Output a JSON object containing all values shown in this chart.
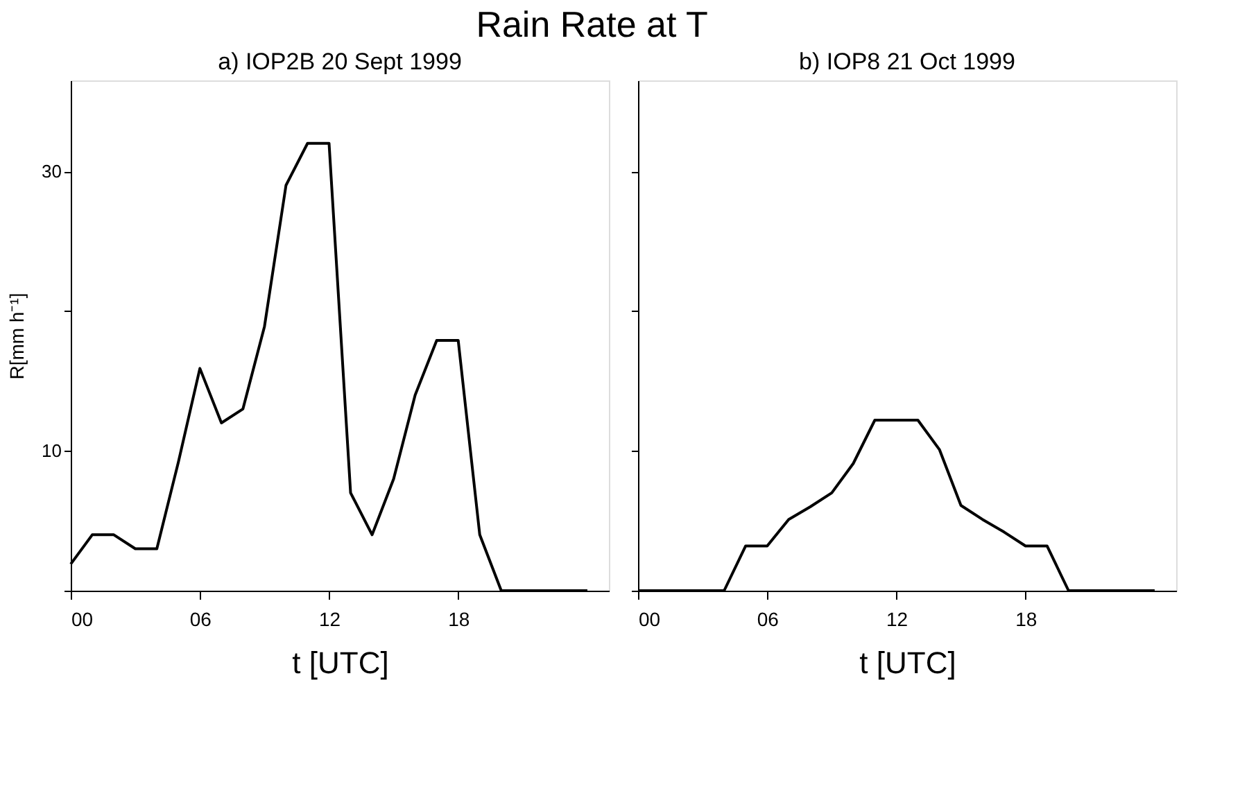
{
  "chart_data": [
    {
      "type": "line",
      "title": "a) IOP2B   20 Sept 1999",
      "xlabel": "t [UTC]",
      "ylabel": "R[mm h⁻¹]",
      "annotations": [
        "Rain Rate at T"
      ],
      "x": [
        0,
        1,
        2,
        3,
        4,
        5,
        6,
        7,
        8,
        9,
        10,
        11,
        12,
        13,
        14,
        15,
        16,
        17,
        18,
        19,
        20,
        21,
        22,
        23,
        24
      ],
      "series": [
        {
          "color": "#000000",
          "values": [
            1.9,
            4.0,
            4.0,
            3.0,
            3.0,
            9.2,
            15.9,
            12.0,
            13.0,
            18.9,
            29.0,
            32.0,
            32.0,
            7.0,
            4.0,
            8.0,
            14.0,
            17.9,
            17.9,
            4.0,
            0,
            0,
            0,
            0,
            0
          ]
        }
      ],
      "xlim": [
        0,
        25
      ],
      "xticks": [
        {
          "value": 0,
          "label": "00"
        },
        {
          "value": 6,
          "label": "06"
        },
        12,
        18
      ],
      "ylim": [
        0,
        36.5
      ],
      "yticks": [
        {
          "value": 0,
          "label": null
        },
        10,
        {
          "value": 20,
          "label": null
        },
        30
      ],
      "grid": false,
      "marker": "none",
      "line_style": "solid"
    },
    {
      "type": "line",
      "title": "b) IOP8   21 Oct 1999",
      "xlabel": "t [UTC]",
      "x": [
        0,
        1,
        2,
        3,
        4,
        5,
        6,
        7,
        8,
        9,
        10,
        11,
        12,
        13,
        14,
        15,
        16,
        17,
        18,
        19,
        20,
        21,
        22,
        23,
        24
      ],
      "series": [
        {
          "color": "#000000",
          "values": [
            0,
            0,
            0,
            0,
            0,
            3.2,
            3.2,
            5.1,
            6.0,
            7.0,
            9.1,
            12.2,
            12.2,
            12.2,
            10.1,
            6.1,
            5.1,
            4.2,
            3.2,
            3.2,
            0,
            0,
            0,
            0,
            0
          ]
        }
      ],
      "xlim": [
        0,
        25
      ],
      "xticks": [
        {
          "value": 0,
          "label": "00"
        },
        {
          "value": 6,
          "label": "06"
        },
        12,
        18
      ],
      "ylim": [
        0,
        36.5
      ],
      "yticks": [
        {
          "value": 0,
          "label": null
        },
        {
          "value": 10,
          "label": null
        },
        {
          "value": 20,
          "label": null
        },
        {
          "value": 30,
          "label": null
        }
      ],
      "tick_labels": "x",
      "grid": false,
      "marker": "none",
      "line_style": "solid"
    }
  ]
}
